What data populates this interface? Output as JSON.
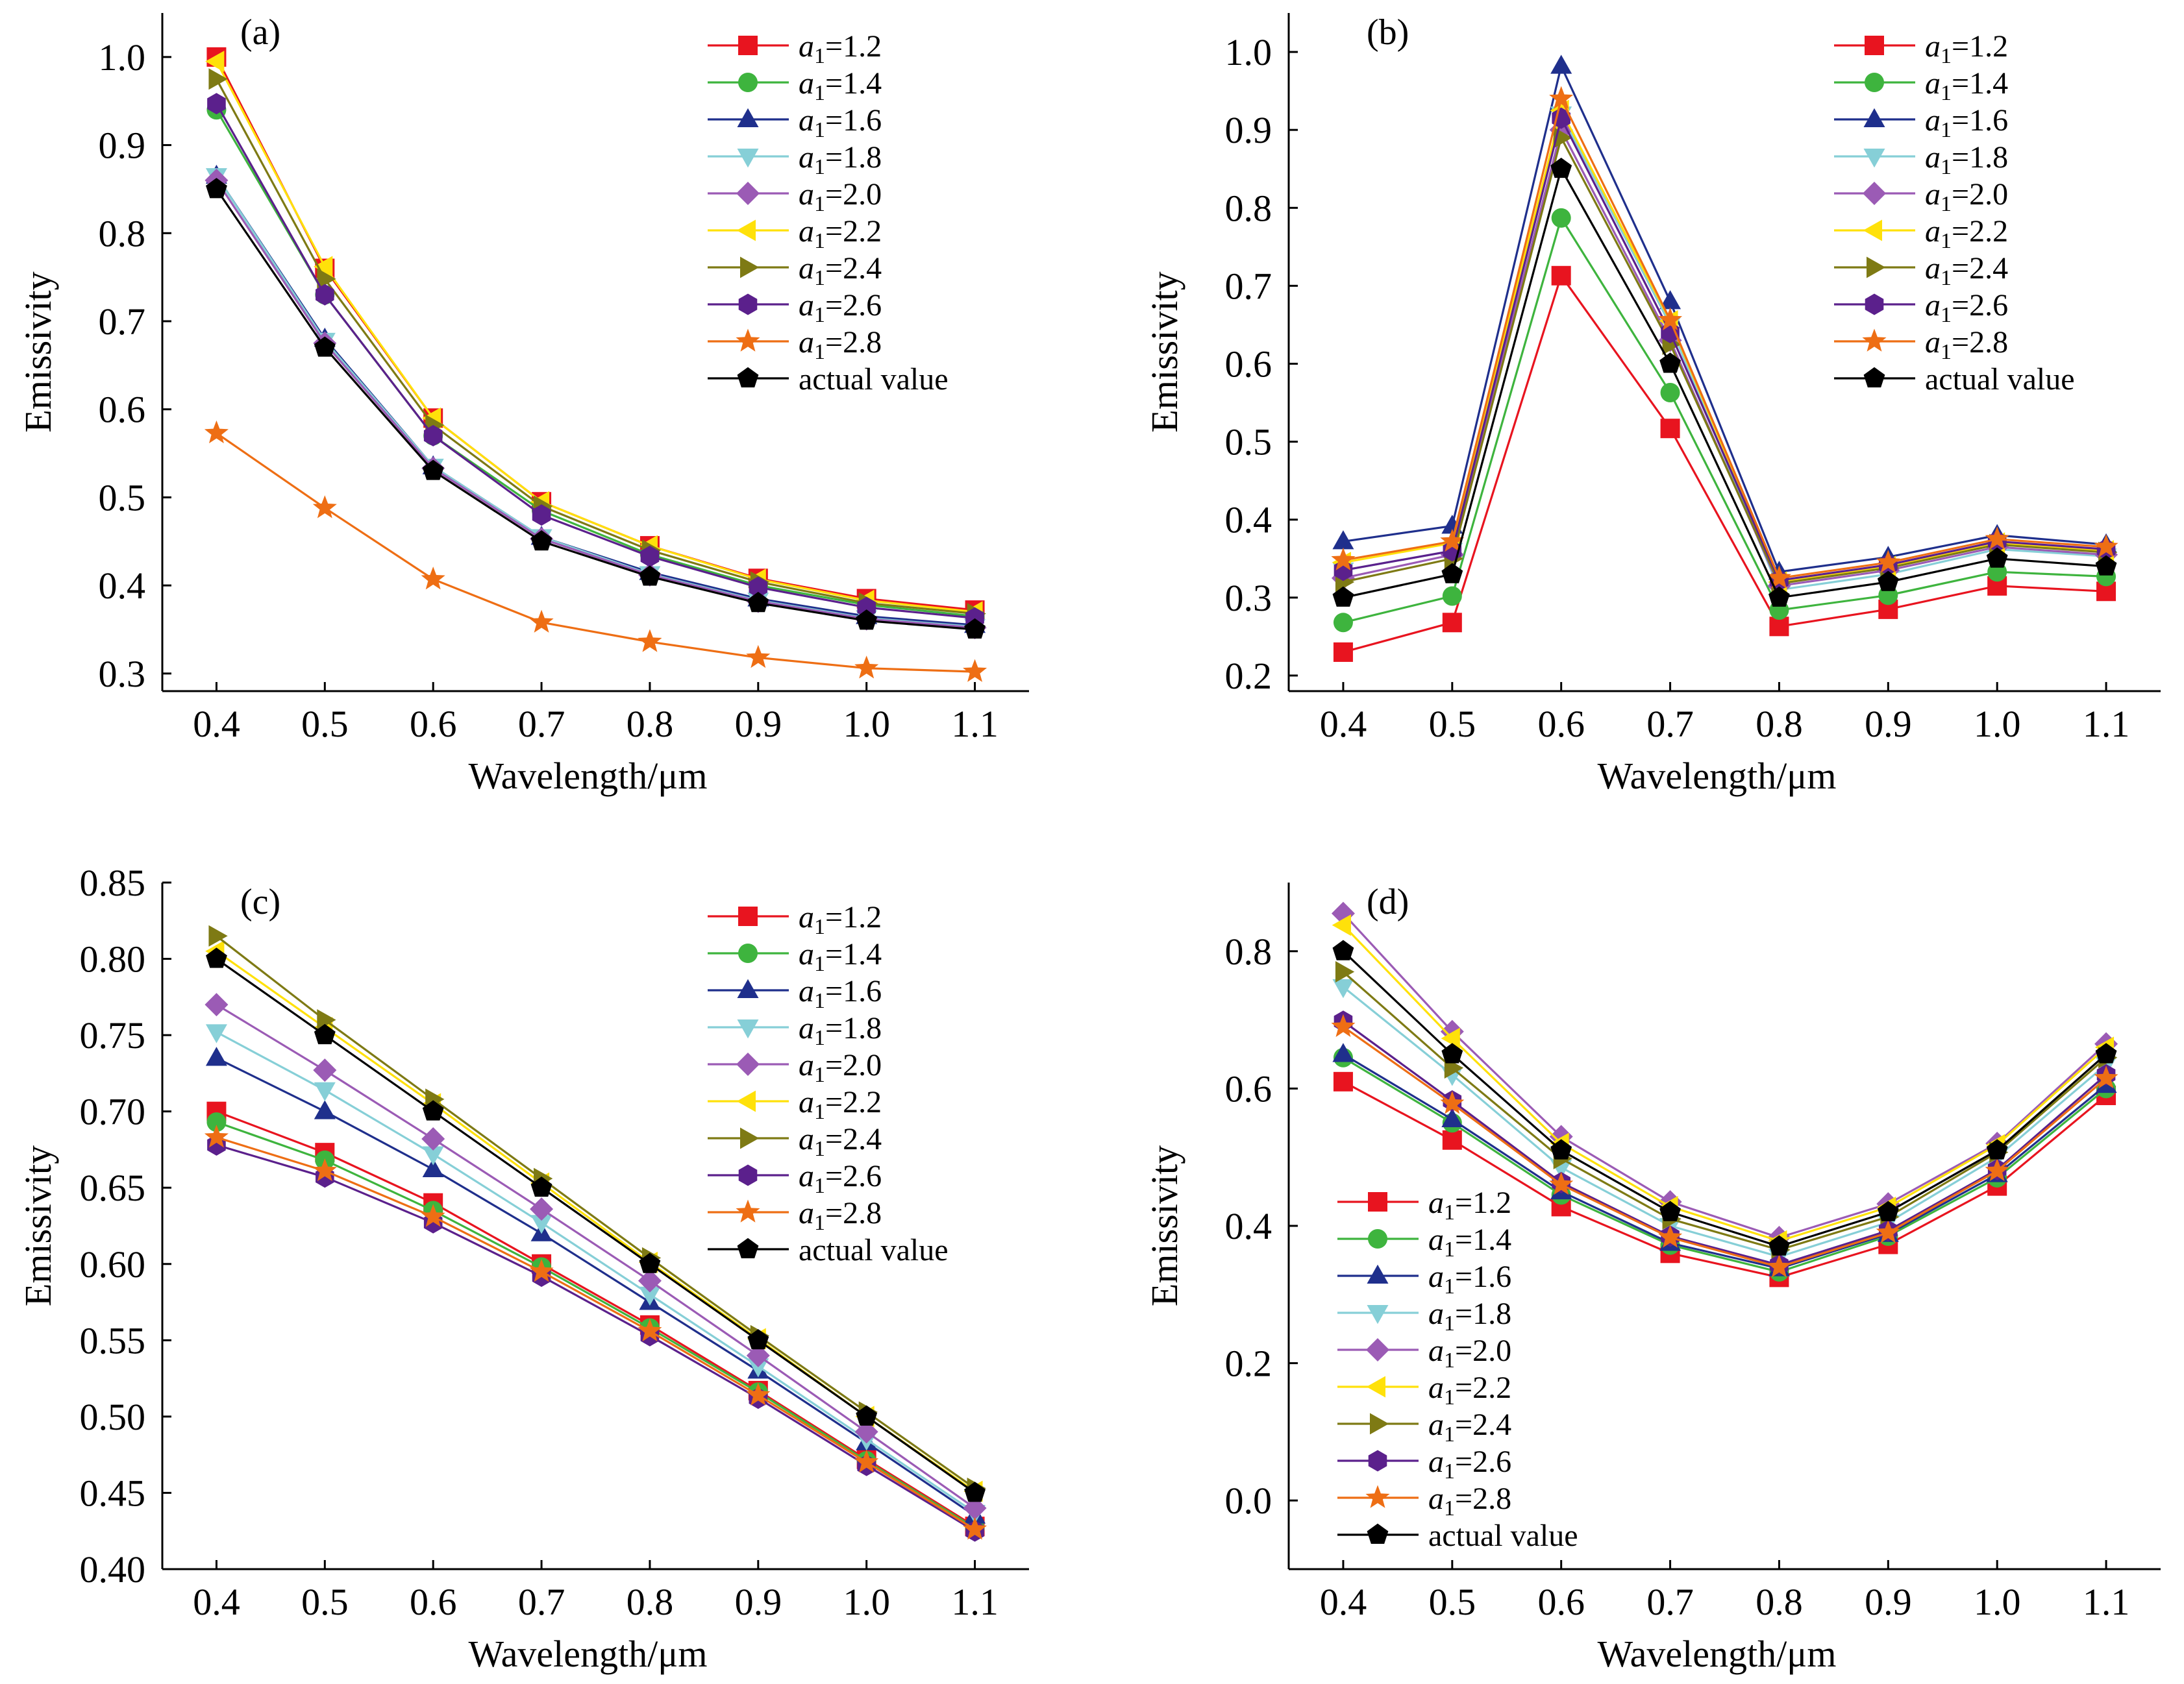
{
  "colors": {
    "a1_1.2": "#e8141f",
    "a1_1.4": "#3eb43e",
    "a1_1.6": "#1f2f8c",
    "a1_1.8": "#86cfd7",
    "a1_2.0": "#9b5bb5",
    "a1_2.2": "#ffe10a",
    "a1_2.4": "#7e7a14",
    "a1_2.6": "#5b208c",
    "a1_2.8": "#ee6e14",
    "actual": "#000000"
  },
  "chart_data": [
    {
      "panel_label": "(a)",
      "type": "line",
      "xlabel": "Wavelength/μm",
      "ylabel": "Emissivity",
      "x": [
        0.4,
        0.5,
        0.6,
        0.7,
        0.8,
        0.9,
        1.0,
        1.1
      ],
      "x_tick_labels": [
        "0.4",
        "0.5",
        "0.6",
        "0.7",
        "0.8",
        "0.9",
        "1.0",
        "1.1"
      ],
      "xlim": [
        0.35,
        1.15
      ],
      "ylim": [
        0.28,
        1.05
      ],
      "y_ticks": [
        0.3,
        0.4,
        0.5,
        0.6,
        0.7,
        0.8,
        0.9,
        1.0
      ],
      "y_tick_labels": [
        "0.3",
        "0.4",
        "0.5",
        "0.6",
        "0.7",
        "0.8",
        "0.9",
        "1.0"
      ],
      "grid": false,
      "legend_position": "top-right",
      "series": [
        {
          "key": "a1_1.2",
          "name": "a1=1.2",
          "name_base": "a",
          "name_sub": "1",
          "name_rest": "=1.2",
          "marker": "square",
          "values": [
            1.0,
            0.76,
            0.59,
            0.495,
            0.445,
            0.408,
            0.385,
            0.372
          ]
        },
        {
          "key": "a1_1.4",
          "name": "a1=1.4",
          "name_base": "a",
          "name_sub": "1",
          "name_rest": "=1.4",
          "marker": "circle",
          "values": [
            0.94,
            0.73,
            0.57,
            0.485,
            0.435,
            0.4,
            0.378,
            0.365
          ]
        },
        {
          "key": "a1_1.6",
          "name": "a1=1.6",
          "name_base": "a",
          "name_sub": "1",
          "name_rest": "=1.6",
          "marker": "triangle-up",
          "values": [
            0.865,
            0.68,
            0.535,
            0.455,
            0.415,
            0.385,
            0.365,
            0.355
          ]
        },
        {
          "key": "a1_1.8",
          "name": "a1=1.8",
          "name_base": "a",
          "name_sub": "1",
          "name_rest": "=1.8",
          "marker": "triangle-down",
          "values": [
            0.865,
            0.678,
            0.535,
            0.455,
            0.413,
            0.383,
            0.363,
            0.353
          ]
        },
        {
          "key": "a1_2.0",
          "name": "a1=2.0",
          "name_base": "a",
          "name_sub": "1",
          "name_rest": "=2.0",
          "marker": "diamond",
          "values": [
            0.86,
            0.675,
            0.533,
            0.453,
            0.412,
            0.382,
            0.362,
            0.352
          ]
        },
        {
          "key": "a1_2.2",
          "name": "a1=2.2",
          "name_base": "a",
          "name_sub": "1",
          "name_rest": "=2.2",
          "marker": "triangle-left",
          "values": [
            0.995,
            0.762,
            0.59,
            0.495,
            0.445,
            0.407,
            0.383,
            0.37
          ]
        },
        {
          "key": "a1_2.4",
          "name": "a1=2.4",
          "name_base": "a",
          "name_sub": "1",
          "name_rest": "=2.4",
          "marker": "triangle-right",
          "values": [
            0.975,
            0.748,
            0.582,
            0.49,
            0.44,
            0.404,
            0.38,
            0.368
          ]
        },
        {
          "key": "a1_2.6",
          "name": "a1=2.6",
          "name_base": "a",
          "name_sub": "1",
          "name_rest": "=2.6",
          "marker": "hexagon",
          "values": [
            0.947,
            0.73,
            0.57,
            0.48,
            0.433,
            0.398,
            0.375,
            0.363
          ]
        },
        {
          "key": "a1_2.8",
          "name": "a1=2.8",
          "name_base": "a",
          "name_sub": "1",
          "name_rest": "=2.8",
          "marker": "star",
          "values": [
            0.573,
            0.488,
            0.407,
            0.358,
            0.336,
            0.318,
            0.306,
            0.302
          ]
        },
        {
          "key": "actual",
          "name": "actual value",
          "marker": "pentagon",
          "values": [
            0.85,
            0.67,
            0.53,
            0.45,
            0.41,
            0.38,
            0.36,
            0.35
          ]
        }
      ]
    },
    {
      "panel_label": "(b)",
      "type": "line",
      "xlabel": "Wavelength/μm",
      "ylabel": "Emissivity",
      "x": [
        0.4,
        0.5,
        0.6,
        0.7,
        0.8,
        0.9,
        1.0,
        1.1
      ],
      "x_tick_labels": [
        "0.4",
        "0.5",
        "0.6",
        "0.7",
        "0.8",
        "0.9",
        "1.0",
        "1.1"
      ],
      "xlim": [
        0.35,
        1.15
      ],
      "ylim": [
        0.18,
        1.05
      ],
      "y_ticks": [
        0.2,
        0.3,
        0.4,
        0.5,
        0.6,
        0.7,
        0.8,
        0.9,
        1.0
      ],
      "y_tick_labels": [
        "0.2",
        "0.3",
        "0.4",
        "0.5",
        "0.6",
        "0.7",
        "0.8",
        "0.9",
        "1.0"
      ],
      "grid": false,
      "legend_position": "top-right",
      "series": [
        {
          "key": "a1_1.2",
          "name": "a1=1.2",
          "name_base": "a",
          "name_sub": "1",
          "name_rest": "=1.2",
          "marker": "square",
          "values": [
            0.23,
            0.268,
            0.713,
            0.517,
            0.263,
            0.285,
            0.315,
            0.308
          ]
        },
        {
          "key": "a1_1.4",
          "name": "a1=1.4",
          "name_base": "a",
          "name_sub": "1",
          "name_rest": "=1.4",
          "marker": "circle",
          "values": [
            0.268,
            0.302,
            0.787,
            0.563,
            0.284,
            0.303,
            0.333,
            0.327
          ]
        },
        {
          "key": "a1_1.6",
          "name": "a1=1.6",
          "name_base": "a",
          "name_sub": "1",
          "name_rest": "=1.6",
          "marker": "triangle-up",
          "values": [
            0.372,
            0.392,
            0.982,
            0.68,
            0.333,
            0.352,
            0.38,
            0.368
          ]
        },
        {
          "key": "a1_1.8",
          "name": "a1=1.8",
          "name_base": "a",
          "name_sub": "1",
          "name_rest": "=1.8",
          "marker": "triangle-down",
          "values": [
            0.335,
            0.36,
            0.92,
            0.65,
            0.31,
            0.33,
            0.362,
            0.353
          ]
        },
        {
          "key": "a1_2.0",
          "name": "a1=2.0",
          "name_base": "a",
          "name_sub": "1",
          "name_rest": "=2.0",
          "marker": "diamond",
          "values": [
            0.325,
            0.355,
            0.9,
            0.63,
            0.315,
            0.335,
            0.365,
            0.355
          ]
        },
        {
          "key": "a1_2.2",
          "name": "a1=2.2",
          "name_base": "a",
          "name_sub": "1",
          "name_rest": "=2.2",
          "marker": "triangle-left",
          "values": [
            0.345,
            0.37,
            0.925,
            0.655,
            0.32,
            0.34,
            0.37,
            0.36
          ]
        },
        {
          "key": "a1_2.4",
          "name": "a1=2.4",
          "name_base": "a",
          "name_sub": "1",
          "name_rest": "=2.4",
          "marker": "triangle-right",
          "values": [
            0.32,
            0.35,
            0.89,
            0.625,
            0.318,
            0.338,
            0.368,
            0.358
          ]
        },
        {
          "key": "a1_2.6",
          "name": "a1=2.6",
          "name_base": "a",
          "name_sub": "1",
          "name_rest": "=2.6",
          "marker": "hexagon",
          "values": [
            0.335,
            0.36,
            0.915,
            0.64,
            0.322,
            0.342,
            0.372,
            0.362
          ]
        },
        {
          "key": "a1_2.8",
          "name": "a1=2.8",
          "name_base": "a",
          "name_sub": "1",
          "name_rest": "=2.8",
          "marker": "star",
          "values": [
            0.348,
            0.372,
            0.94,
            0.656,
            0.325,
            0.345,
            0.375,
            0.365
          ]
        },
        {
          "key": "actual",
          "name": "actual value",
          "marker": "pentagon",
          "values": [
            0.3,
            0.33,
            0.85,
            0.6,
            0.3,
            0.32,
            0.35,
            0.34
          ]
        }
      ]
    },
    {
      "panel_label": "(c)",
      "type": "line",
      "xlabel": "Wavelength/μm",
      "ylabel": "Emissivity",
      "x": [
        0.4,
        0.5,
        0.6,
        0.7,
        0.8,
        0.9,
        1.0,
        1.1
      ],
      "x_tick_labels": [
        "0.4",
        "0.5",
        "0.6",
        "0.7",
        "0.8",
        "0.9",
        "1.0",
        "1.1"
      ],
      "xlim": [
        0.35,
        1.15
      ],
      "ylim": [
        0.4,
        0.85
      ],
      "y_ticks": [
        0.4,
        0.45,
        0.5,
        0.55,
        0.6,
        0.65,
        0.7,
        0.75,
        0.8,
        0.85
      ],
      "y_tick_labels": [
        "0.40",
        "0.45",
        "0.50",
        "0.55",
        "0.60",
        "0.65",
        "0.70",
        "0.75",
        "0.80",
        "0.85"
      ],
      "grid": false,
      "legend_position": "top-right",
      "series": [
        {
          "key": "a1_1.2",
          "name": "a1=1.2",
          "name_base": "a",
          "name_sub": "1",
          "name_rest": "=1.2",
          "marker": "square",
          "values": [
            0.7,
            0.673,
            0.64,
            0.6,
            0.56,
            0.517,
            0.472,
            0.428
          ]
        },
        {
          "key": "a1_1.4",
          "name": "a1=1.4",
          "name_base": "a",
          "name_sub": "1",
          "name_rest": "=1.4",
          "marker": "circle",
          "values": [
            0.693,
            0.668,
            0.635,
            0.598,
            0.558,
            0.516,
            0.471,
            0.427
          ]
        },
        {
          "key": "a1_1.6",
          "name": "a1=1.6",
          "name_base": "a",
          "name_sub": "1",
          "name_rest": "=1.6",
          "marker": "triangle-up",
          "values": [
            0.735,
            0.7,
            0.662,
            0.62,
            0.575,
            0.53,
            0.483,
            0.435
          ]
        },
        {
          "key": "a1_1.8",
          "name": "a1=1.8",
          "name_base": "a",
          "name_sub": "1",
          "name_rest": "=1.8",
          "marker": "triangle-down",
          "values": [
            0.752,
            0.714,
            0.672,
            0.627,
            0.58,
            0.533,
            0.485,
            0.437
          ]
        },
        {
          "key": "a1_2.0",
          "name": "a1=2.0",
          "name_base": "a",
          "name_sub": "1",
          "name_rest": "=2.0",
          "marker": "diamond",
          "values": [
            0.77,
            0.727,
            0.682,
            0.636,
            0.589,
            0.54,
            0.49,
            0.44
          ]
        },
        {
          "key": "a1_2.2",
          "name": "a1=2.2",
          "name_base": "a",
          "name_sub": "1",
          "name_rest": "=2.2",
          "marker": "triangle-left",
          "values": [
            0.805,
            0.755,
            0.705,
            0.653,
            0.601,
            0.551,
            0.5,
            0.451
          ]
        },
        {
          "key": "a1_2.4",
          "name": "a1=2.4",
          "name_base": "a",
          "name_sub": "1",
          "name_rest": "=2.4",
          "marker": "triangle-right",
          "values": [
            0.815,
            0.76,
            0.708,
            0.656,
            0.604,
            0.553,
            0.503,
            0.453
          ]
        },
        {
          "key": "a1_2.6",
          "name": "a1=2.6",
          "name_base": "a",
          "name_sub": "1",
          "name_rest": "=2.6",
          "marker": "hexagon",
          "values": [
            0.678,
            0.657,
            0.627,
            0.592,
            0.553,
            0.512,
            0.468,
            0.425
          ]
        },
        {
          "key": "a1_2.8",
          "name": "a1=2.8",
          "name_base": "a",
          "name_sub": "1",
          "name_rest": "=2.8",
          "marker": "star",
          "values": [
            0.683,
            0.661,
            0.631,
            0.595,
            0.556,
            0.514,
            0.47,
            0.426
          ]
        },
        {
          "key": "actual",
          "name": "actual value",
          "marker": "pentagon",
          "values": [
            0.8,
            0.75,
            0.7,
            0.65,
            0.6,
            0.55,
            0.5,
            0.45
          ]
        }
      ]
    },
    {
      "panel_label": "(d)",
      "type": "line",
      "xlabel": "Wavelength/μm",
      "ylabel": "Emissivity",
      "x": [
        0.4,
        0.5,
        0.6,
        0.7,
        0.8,
        0.9,
        1.0,
        1.1
      ],
      "x_tick_labels": [
        "0.4",
        "0.5",
        "0.6",
        "0.7",
        "0.8",
        "0.9",
        "1.0",
        "1.1"
      ],
      "xlim": [
        0.35,
        1.15
      ],
      "ylim": [
        -0.1,
        0.9
      ],
      "y_ticks": [
        0.0,
        0.2,
        0.4,
        0.6,
        0.8
      ],
      "y_tick_labels": [
        "0.0",
        "0.2",
        "0.4",
        "0.6",
        "0.8"
      ],
      "grid": false,
      "legend_position": "bottom-left",
      "series": [
        {
          "key": "a1_1.2",
          "name": "a1=1.2",
          "name_base": "a",
          "name_sub": "1",
          "name_rest": "=1.2",
          "marker": "square",
          "values": [
            0.61,
            0.525,
            0.428,
            0.36,
            0.325,
            0.373,
            0.458,
            0.59
          ]
        },
        {
          "key": "a1_1.4",
          "name": "a1=1.4",
          "name_base": "a",
          "name_sub": "1",
          "name_rest": "=1.4",
          "marker": "circle",
          "values": [
            0.645,
            0.55,
            0.445,
            0.372,
            0.333,
            0.385,
            0.47,
            0.6
          ]
        },
        {
          "key": "a1_1.6",
          "name": "a1=1.6",
          "name_base": "a",
          "name_sub": "1",
          "name_rest": "=1.6",
          "marker": "triangle-up",
          "values": [
            0.65,
            0.555,
            0.45,
            0.375,
            0.338,
            0.388,
            0.475,
            0.605
          ]
        },
        {
          "key": "a1_1.8",
          "name": "a1=1.8",
          "name_base": "a",
          "name_sub": "1",
          "name_rest": "=1.8",
          "marker": "triangle-down",
          "values": [
            0.748,
            0.62,
            0.485,
            0.4,
            0.355,
            0.405,
            0.5,
            0.635
          ]
        },
        {
          "key": "a1_2.0",
          "name": "a1=2.0",
          "name_base": "a",
          "name_sub": "1",
          "name_rest": "=2.0",
          "marker": "diamond",
          "values": [
            0.855,
            0.683,
            0.53,
            0.435,
            0.383,
            0.432,
            0.52,
            0.665
          ]
        },
        {
          "key": "a1_2.2",
          "name": "a1=2.2",
          "name_base": "a",
          "name_sub": "1",
          "name_rest": "=2.2",
          "marker": "triangle-left",
          "values": [
            0.838,
            0.673,
            0.52,
            0.428,
            0.378,
            0.427,
            0.518,
            0.66
          ]
        },
        {
          "key": "a1_2.4",
          "name": "a1=2.4",
          "name_base": "a",
          "name_sub": "1",
          "name_rest": "=2.4",
          "marker": "triangle-right",
          "values": [
            0.77,
            0.63,
            0.498,
            0.41,
            0.365,
            0.413,
            0.507,
            0.645
          ]
        },
        {
          "key": "a1_2.6",
          "name": "a1=2.6",
          "name_base": "a",
          "name_sub": "1",
          "name_rest": "=2.6",
          "marker": "hexagon",
          "values": [
            0.698,
            0.582,
            0.463,
            0.385,
            0.343,
            0.393,
            0.482,
            0.62
          ]
        },
        {
          "key": "a1_2.8",
          "name": "a1=2.8",
          "name_base": "a",
          "name_sub": "1",
          "name_rest": "=2.8",
          "marker": "star",
          "values": [
            0.69,
            0.578,
            0.46,
            0.383,
            0.34,
            0.39,
            0.48,
            0.615
          ]
        },
        {
          "key": "actual",
          "name": "actual value",
          "marker": "pentagon",
          "values": [
            0.8,
            0.65,
            0.51,
            0.42,
            0.37,
            0.42,
            0.51,
            0.65
          ]
        }
      ]
    }
  ]
}
